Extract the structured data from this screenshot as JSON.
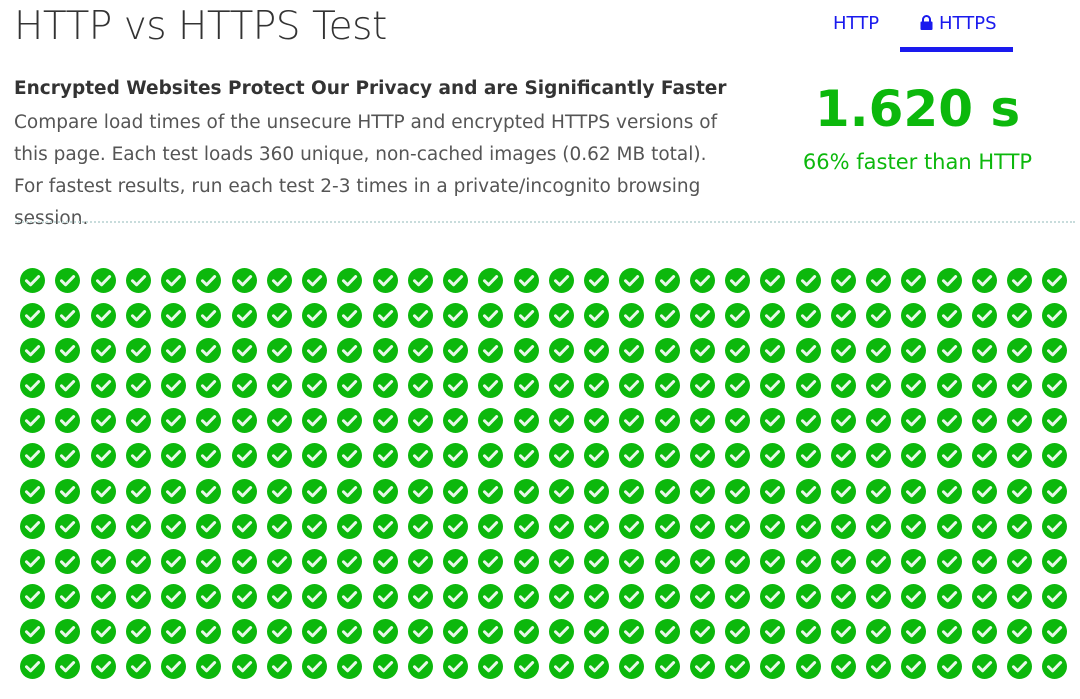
{
  "header": {
    "title": "HTTP vs HTTPS Test",
    "subtitle": "Encrypted Websites Protect Our Privacy and are Significantly Faster",
    "description": "Compare load times of the unsecure HTTP and encrypted HTTPS versions of this page. Each test loads 360 unique, non-cached images (0.62 MB total). For fastest results, run each test 2-3 times in a private/incognito browsing session."
  },
  "tabs": [
    {
      "label": "HTTP",
      "active": false
    },
    {
      "label": "HTTPS",
      "active": true,
      "icon": "lock-icon"
    }
  ],
  "result": {
    "time": "1.620 s",
    "comparison": "66% faster than HTTP"
  },
  "images": {
    "count": 360,
    "status": "loaded",
    "icon": "check-circle-icon"
  },
  "colors": {
    "accent": "#1a1aee",
    "success": "#0cb80c"
  }
}
